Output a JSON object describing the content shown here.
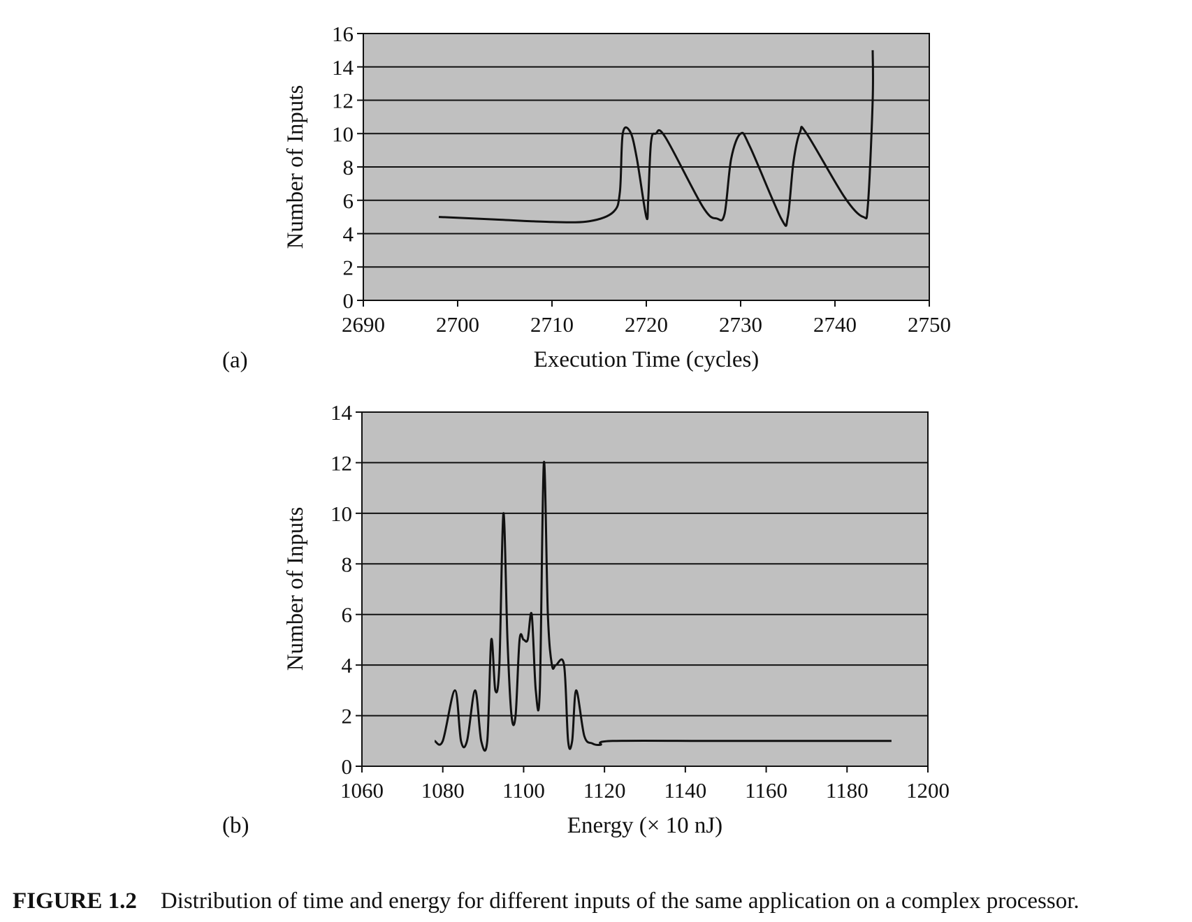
{
  "figure": {
    "number": "FIGURE 1.2",
    "caption": "Distribution of time and energy for different inputs of the same application on a complex processor."
  },
  "colors": {
    "plot_background": "#c0c0c0",
    "line": "#111111",
    "grid": "#111111"
  },
  "chart_data": [
    {
      "panel_label": "(a)",
      "type": "line",
      "title": "",
      "xlabel": "Execution Time (cycles)",
      "ylabel": "Number of Inputs",
      "xlim": [
        2690,
        2750
      ],
      "ylim": [
        0,
        16
      ],
      "xticks": [
        2690,
        2700,
        2710,
        2720,
        2730,
        2740,
        2750
      ],
      "yticks": [
        0,
        2,
        4,
        6,
        8,
        10,
        12,
        14,
        16
      ],
      "grid": "horizontal",
      "series": [
        {
          "x": [
            2698,
            2704,
            2710,
            2714,
            2716.5,
            2717.2,
            2717.5,
            2718.3,
            2719,
            2720,
            2720.2,
            2720.5,
            2721,
            2722,
            2726,
            2727.5,
            2728.3,
            2729,
            2730,
            2731,
            2734.3,
            2735,
            2735.6,
            2736.3,
            2737,
            2741,
            2743,
            2743.5,
            2744,
            2744
          ],
          "y": [
            5,
            4.85,
            4.7,
            4.75,
            5.3,
            6.5,
            10,
            10.1,
            8.5,
            5,
            6,
            9.5,
            10,
            9.8,
            5.6,
            4.9,
            5.2,
            8.5,
            10,
            9.2,
            4.9,
            5,
            8.3,
            10.1,
            10,
            6.2,
            5,
            5.8,
            12,
            15
          ]
        }
      ]
    },
    {
      "panel_label": "(b)",
      "type": "line",
      "title": "",
      "xlabel": "Energy (× 10 nJ)",
      "ylabel": "Number of Inputs",
      "xlim": [
        1060,
        1200
      ],
      "ylim": [
        0,
        14
      ],
      "xticks": [
        1060,
        1080,
        1100,
        1120,
        1140,
        1160,
        1180,
        1200
      ],
      "yticks": [
        0,
        2,
        4,
        6,
        8,
        10,
        12,
        14
      ],
      "grid": "horizontal",
      "series": [
        {
          "x": [
            1078,
            1080,
            1083,
            1084.5,
            1086,
            1088,
            1089.5,
            1091,
            1092,
            1093,
            1094,
            1095,
            1096,
            1097,
            1098,
            1099,
            1100,
            1101,
            1102,
            1103,
            1104,
            1105,
            1106,
            1107,
            1108,
            1110,
            1111,
            1112,
            1113,
            1115,
            1117,
            1119,
            1122,
            1150,
            1191
          ],
          "y": [
            1,
            1,
            3,
            1,
            1,
            3,
            1,
            1,
            5,
            3,
            4,
            10,
            5,
            2,
            2,
            5,
            5,
            5,
            6,
            3,
            3,
            12,
            6,
            4,
            4,
            4,
            1,
            1,
            3,
            1.2,
            0.9,
            0.85,
            1,
            1,
            1
          ]
        }
      ]
    }
  ]
}
